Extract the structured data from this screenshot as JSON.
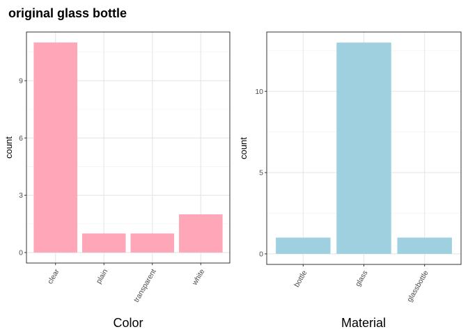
{
  "figure_title": "original glass bottle",
  "chart_data": [
    {
      "type": "bar",
      "title": "",
      "xlabel": "Color",
      "ylabel": "count",
      "categories": [
        "clear",
        "plain",
        "transparent",
        "white"
      ],
      "values": [
        11,
        1,
        1,
        2
      ],
      "ylim": [
        -0.55,
        11.55
      ],
      "yticks": [
        0,
        3,
        6,
        9
      ],
      "grid": true,
      "bar_color": "#ffa6b8"
    },
    {
      "type": "bar",
      "title": "",
      "xlabel": "Material",
      "ylabel": "count",
      "categories": [
        "bottle",
        "glass",
        "glassbottle"
      ],
      "values": [
        1,
        13,
        1
      ],
      "ylim": [
        -0.65,
        13.65
      ],
      "yticks": [
        0,
        5,
        10
      ],
      "grid": true,
      "bar_color": "#9fd0e0"
    }
  ]
}
